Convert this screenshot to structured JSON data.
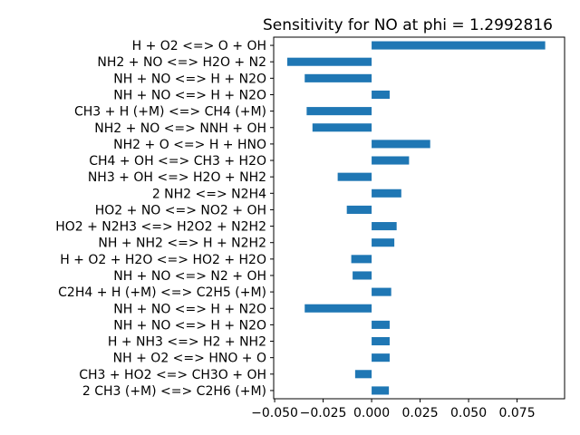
{
  "chart_data": {
    "type": "bar",
    "orientation": "horizontal",
    "title": "Sensitivity for NO at phi = 1.2992816",
    "xlabel": "",
    "ylabel": "",
    "xlim": [
      -0.0505,
      0.0995
    ],
    "xticks": [
      -0.05,
      -0.025,
      0.0,
      0.025,
      0.05,
      0.075
    ],
    "xtick_labels": [
      "−0.050",
      "−0.025",
      "0.000",
      "0.025",
      "0.050",
      "0.075"
    ],
    "bar_color": "#1f77b4",
    "grid": false,
    "categories": [
      "H + O2 <=> O + OH",
      "NH2 + NO <=> H2O + N2",
      "NH + NO <=> H + N2O",
      "NH + NO <=> H + N2O",
      "CH3 + H (+M) <=> CH4 (+M)",
      "NH2 + NO <=> NNH + OH",
      "NH2 + O <=> H + HNO",
      "CH4 + OH <=> CH3 + H2O",
      "NH3 + OH <=> H2O + NH2",
      "2 NH2 <=> N2H4",
      "HO2 + NO <=> NO2 + OH",
      "HO2 + N2H3 <=> H2O2 + N2H2",
      "NH + NH2 <=> H + N2H2",
      "H + O2 + H2O <=> HO2 + H2O",
      "NH + NO <=> N2 + OH",
      "C2H4 + H (+M) <=> C2H5 (+M)",
      "NH + NO <=> H + N2O",
      "NH + NO <=> H + N2O",
      "H + NH3 <=> H2 + NH2",
      "NH + O2 <=> HNO + O",
      "CH3 + HO2 <=> CH3O + OH",
      "2 CH3 (+M) <=> C2H6 (+M)"
    ],
    "values": [
      0.0895,
      -0.0435,
      -0.0345,
      0.0093,
      -0.0335,
      -0.0305,
      0.0302,
      0.0193,
      -0.0175,
      0.0153,
      -0.0128,
      0.0129,
      0.0117,
      -0.0105,
      -0.0098,
      0.0101,
      -0.0345,
      0.0093,
      0.0093,
      0.0093,
      -0.0085,
      0.0089
    ]
  }
}
